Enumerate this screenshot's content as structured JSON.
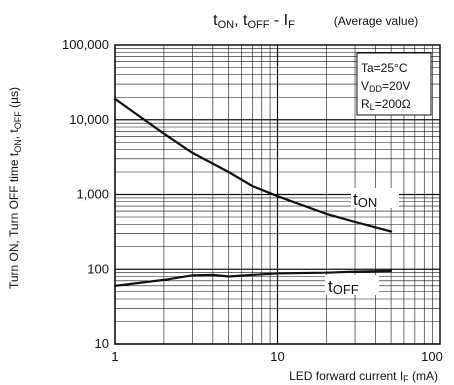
{
  "chart_data": {
    "type": "line",
    "title": "tON, tOFF - IF",
    "title_parts": {
      "t1": "t",
      "s1": "ON",
      "sep1": ", t",
      "s2": "OFF",
      "sep2": " - I",
      "s3": "F"
    },
    "subtitle": "(Average value)",
    "xlabel": "LED forward current IF (mA)",
    "xlabel_parts": {
      "main": "LED forward current I",
      "sub": "F",
      "unit": " (mA)"
    },
    "ylabel": "Turn ON, Turn OFF time tON, tOFF (µs)",
    "ylabel_parts": {
      "main": "Turn ON, Turn OFF time t",
      "sub1": "ON",
      "mid": ", t",
      "sub2": "OFF",
      "unit": " (µs)"
    },
    "x_scale": "log",
    "y_scale": "log",
    "xlim": [
      1,
      100
    ],
    "ylim": [
      10,
      100000
    ],
    "x_ticks": [
      {
        "value": 1,
        "label": "1"
      },
      {
        "value": 10,
        "label": "10"
      },
      {
        "value": 100,
        "label": "100"
      }
    ],
    "y_ticks": [
      {
        "value": 10,
        "label": "10"
      },
      {
        "value": 100,
        "label": "100"
      },
      {
        "value": 1000,
        "label": "1,000"
      },
      {
        "value": 10000,
        "label": "10,000"
      },
      {
        "value": 100000,
        "label": "100,000"
      }
    ],
    "grid": true,
    "conditions": [
      {
        "main": "Ta=25°C",
        "sub": ""
      },
      {
        "main": "V",
        "sub": "DD",
        "rest": "=20V"
      },
      {
        "main": "R",
        "sub": "L",
        "rest": "=200Ω"
      }
    ],
    "series": [
      {
        "name": "tON",
        "label_main": "t",
        "label_sub": "ON",
        "x": [
          1,
          2,
          3,
          5,
          7,
          10,
          20,
          30,
          50
        ],
        "y": [
          19000,
          6500,
          3600,
          2000,
          1300,
          950,
          550,
          430,
          320
        ]
      },
      {
        "name": "tOFF",
        "label_main": "t",
        "label_sub": "OFF",
        "x": [
          1,
          2,
          3,
          4,
          5,
          7,
          10,
          20,
          30,
          50
        ],
        "y": [
          60,
          72,
          83,
          84,
          80,
          84,
          88,
          90,
          93,
          95
        ]
      }
    ]
  }
}
